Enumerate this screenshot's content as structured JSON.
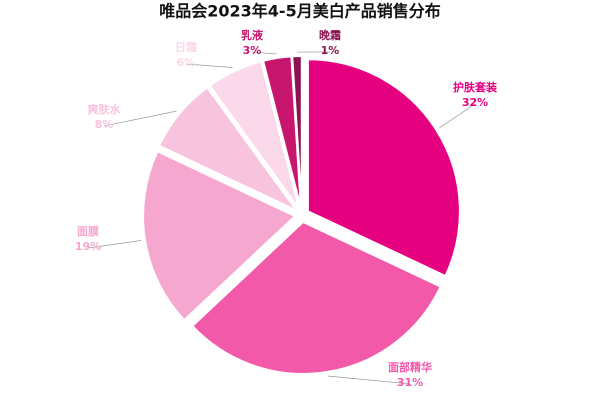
{
  "chart_data": {
    "type": "pie",
    "title": "唯品会2023年4-5月美白产品销售分布",
    "categories": [
      "护肤套装",
      "面部精华",
      "面膜",
      "爽肤水",
      "日霜",
      "乳液",
      "晚霜"
    ],
    "values": [
      32,
      31,
      19,
      8,
      6,
      3,
      1
    ],
    "value_labels": [
      "32%",
      "31%",
      "19%",
      "8%",
      "6%",
      "3%",
      "1%"
    ],
    "colors": [
      "#e4007f",
      "#f25aa9",
      "#f6a7cf",
      "#f8c3dd",
      "#fbd8ea",
      "#c8156e",
      "#8c1350"
    ]
  }
}
